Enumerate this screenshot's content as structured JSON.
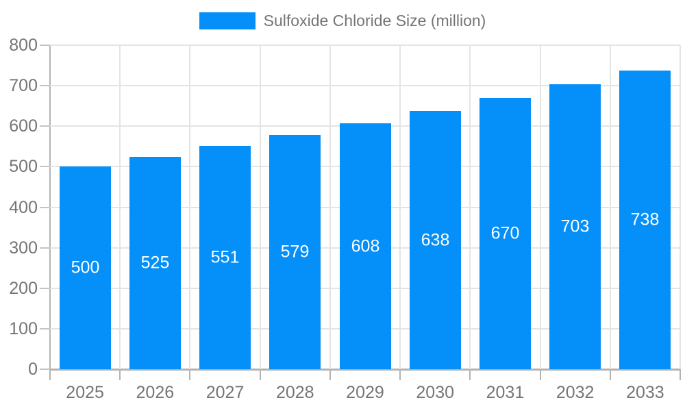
{
  "legend": {
    "label": "Sulfoxide Chloride Size (million)"
  },
  "colors": {
    "bar": "#058ff8",
    "grid": "#e4e4e4",
    "axis": "#b3b3b3",
    "text": "#757575",
    "bar_label": "#ffffff",
    "background": "#ffffff"
  },
  "chart_data": {
    "type": "bar",
    "title": "",
    "series_name": "Sulfoxide Chloride Size (million)",
    "categories": [
      "2025",
      "2026",
      "2027",
      "2028",
      "2029",
      "2030",
      "2031",
      "2032",
      "2033"
    ],
    "values": [
      500,
      525,
      551,
      579,
      608,
      638,
      670,
      703,
      738
    ],
    "xlabel": "",
    "ylabel": "",
    "ylim": [
      0,
      800
    ],
    "ytick_step": 100,
    "ytick_labels": [
      "0",
      "100",
      "200",
      "300",
      "400",
      "500",
      "600",
      "700",
      "800"
    ],
    "grid": true,
    "grid_vertical": true,
    "legend_position": "top",
    "value_labels": "inside-center"
  }
}
